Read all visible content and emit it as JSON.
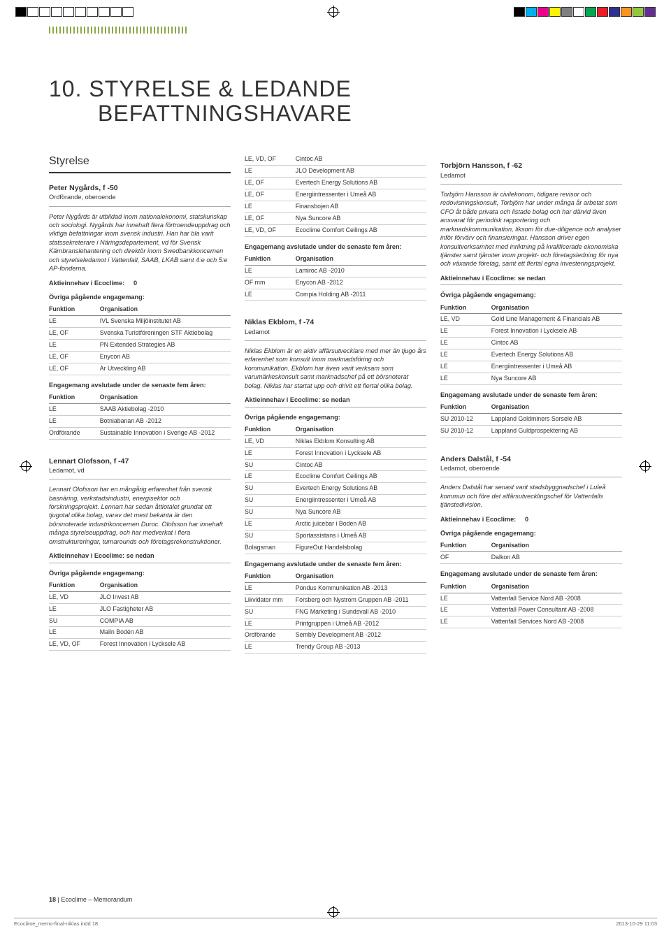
{
  "printbar": {
    "left_squares": [
      "#000000",
      "#ffffff",
      "#ffffff",
      "#ffffff",
      "#ffffff",
      "#ffffff",
      "#ffffff",
      "#ffffff",
      "#ffffff",
      "#ffffff"
    ],
    "right_squares": [
      "#000000",
      "#00aeef",
      "#ec008c",
      "#fff200",
      "#7f7f7f",
      "#ffffff",
      "#00a651",
      "#ed1c24",
      "#2e3192",
      "#f7941d",
      "#92c83e",
      "#662d91"
    ]
  },
  "title_line1": "10. STYRELSE & LEDANDE",
  "title_line2": "BEFATTNINGSHAVARE",
  "section_heading": "Styrelse",
  "th_funktion": "Funktion",
  "th_org": "Organisation",
  "label_aktie": "Aktieinnehav i Ecoclime:",
  "label_aktie_nedan": "Aktieinnehav i Ecoclime: se nedan",
  "label_ovriga": "Övriga pågående engagemang:",
  "label_avslutade": "Engagemang avslutade under de senaste fem åren:",
  "people": {
    "peter": {
      "name": "Peter Nygårds, f -50",
      "role": "Ordförande, oberoende",
      "bio": "Peter Nygårds är utbildad inom nationalekonomi, statskunskap och sociologi. Nygårds har innehaft flera förtroendeuppdrag och viktiga befattningar inom svensk industri. Han har bla varit statssekreterare i Näringsdepartement, vd för Svensk Kärnbranslehantering och direktör inom Swedbankkoncernen och styrelseledamot i Vattenfall, SAAB, LKAB samt 4:e och 5:e AP-fonderna.",
      "aktie_val": "0",
      "ovriga": [
        [
          "LE",
          "IVL Svenska Miljöinstitutet AB"
        ],
        [
          "LE, OF",
          "Svenska Turistföreningen STF Aktiebolag"
        ],
        [
          "LE",
          "PN Extended Strategies AB"
        ],
        [
          "LE, OF",
          "Enycon AB"
        ],
        [
          "LE, OF",
          "Ar Utveckling AB"
        ]
      ],
      "avslutade": [
        [
          "LE",
          "SAAB Aktiebolag -2010"
        ],
        [
          "LE",
          "Botniabanan AB -2012"
        ],
        [
          "Ordförande",
          "Sustainable Innovation i Sverige AB -2012"
        ]
      ]
    },
    "lennart": {
      "name": "Lennart Olofsson, f -47",
      "role": "Ledamot, vd",
      "bio": "Lennart Olofsson har en mångårig erfarenhet från svensk basnäring, verkstadsindustri, energisektor och forskningsprojekt. Lennart har sedan åttiotalet grundat ett tjugotal olika bolag, varav det mest bekanta är den börsnoterade industrikoncernen Duroc. Olofsson har innehaft många styrelseuppdrag, och har medverkat i flera omstruktureringar, turnarounds och företagsrekonstruktioner.",
      "ovriga": [
        [
          "LE, VD",
          "JLO Invest AB"
        ],
        [
          "LE",
          "JLO Fastigheter AB"
        ],
        [
          "SU",
          "COMPIA AB"
        ],
        [
          "LE",
          "Malin Bodén AB"
        ],
        [
          "LE, VD, OF",
          "Forest Innovation i Lycksele AB"
        ]
      ],
      "ovriga2": [
        [
          "LE, VD, OF",
          "Cintoc AB"
        ],
        [
          "LE",
          "JLO Development AB"
        ],
        [
          "LE, OF",
          "Evertech Energy Solutions AB"
        ],
        [
          "LE, OF",
          "Energiintressenter i Umeå AB"
        ],
        [
          "LE",
          "Finansbojen AB"
        ],
        [
          "LE, OF",
          "Nya Suncore AB"
        ],
        [
          "LE, VD, OF",
          "Ecoclime Comfort Ceilings AB"
        ]
      ],
      "avslutade": [
        [
          "LE",
          "Lamiroc AB -2010"
        ],
        [
          "OF mm",
          "Enycon AB -2012"
        ],
        [
          "LE",
          "Compia Holding AB -2011"
        ]
      ]
    },
    "niklas": {
      "name": "Niklas Ekblom, f -74",
      "role": "Ledamot",
      "bio": "Niklas Ekblom är en aktiv affärsutvecklare med mer än tjugo års erfarenhet som konsult inom marknadsföring och kommunikation. Ekblom har även varit verksam som varumärkeskonsult samt marknadschef på ett börsnoterat bolag. Niklas har startat upp och drivit ett flertal olika bolag.",
      "ovriga": [
        [
          "LE, VD",
          "Niklas Ekblom Konsulting AB"
        ],
        [
          "LE",
          "Forest Innovation i Lycksele AB"
        ],
        [
          "SU",
          "Cintoc AB"
        ],
        [
          "LE",
          "Ecoclime Comfort Ceilings AB"
        ],
        [
          "SU",
          "Evertech Energy Solutions AB"
        ],
        [
          "SU",
          "Energiintressenter i Umeå AB"
        ],
        [
          "SU",
          "Nya Suncore AB"
        ],
        [
          "LE",
          "Arctic juicebar i Boden AB"
        ],
        [
          "SU",
          "Sportassistans i Umeå AB"
        ],
        [
          "Bolagsman",
          "FigureOut Handelsbolag"
        ]
      ],
      "avslutade": [
        [
          "LE",
          "Pondus Kommunikation AB -2013"
        ],
        [
          "Likvidator mm",
          "Forsberg och Nystrom Gruppen AB -2011"
        ],
        [
          "SU",
          "FNG Marketing i Sundsvall AB -2010"
        ],
        [
          "LE",
          "Printgruppen i Umeå AB -2012"
        ],
        [
          "Ordförande",
          "Sembly Development AB -2012"
        ],
        [
          "LE",
          "Trendy Group AB -2013"
        ]
      ]
    },
    "torbjorn": {
      "name": "Torbjörn Hansson, f -62",
      "role": "Ledamot",
      "bio": "Torbjörn Hansson är civilekonom, tidigare revisor och redovisningskonsult, Torbjörn har under många år arbetat som CFO åt både privata och listade bolag och har därvid även ansvarat för periodisk rapportering och marknadskommunikation, liksom för due-diligence och analyser inför förvärv och finansieringar. Hansson driver egen konsultverksamhet med inriktning på kvalificerade ekonomiska tjänster samt tjänster inom projekt- och företagsledning för nya och växande företag, samt ett flertal egna investeringsprojekt.",
      "ovriga": [
        [
          "LE, VD",
          "Gold Line Management & Financials AB"
        ],
        [
          "LE",
          "Forest Innovation i Lycksele AB"
        ],
        [
          "LE",
          "Cintoc AB"
        ],
        [
          "LE",
          "Evertech Energy Solutions AB"
        ],
        [
          "LE",
          "Energiintressenter i Umeå AB"
        ],
        [
          "LE",
          "Nya Suncore AB"
        ]
      ],
      "avslutade": [
        [
          "SU 2010-12",
          "Lappland Goldminers Sorsele AB"
        ],
        [
          "SU 2010-12",
          "Lappland Guldprospektering AB"
        ]
      ]
    },
    "anders": {
      "name": "Anders Dalstål, f -54",
      "role": "Ledamot, oberoende",
      "bio": "Anders Dalstål har senast varit stadsbyggnadschef i Luleå kommun och före det affärsutvecklingschef för Vattenfalls tjänstedivision.",
      "aktie_val": "0",
      "ovriga": [
        [
          "OF",
          "Dalkon AB"
        ]
      ],
      "avslutade": [
        [
          "LE",
          "Vattenfall Service Nord AB -2008"
        ],
        [
          "LE",
          "Vattenfall Power Consultant AB -2008"
        ],
        [
          "LE",
          "Vattenfall Services Nord AB -2008"
        ]
      ]
    }
  },
  "footer": {
    "page": "18",
    "sep": " | ",
    "doc": "Ecoclime – Memorandum"
  },
  "indesign": {
    "file": "Ecoclime_memo-final-niklas.indd   18",
    "date": "2013-10-29   11:03"
  }
}
